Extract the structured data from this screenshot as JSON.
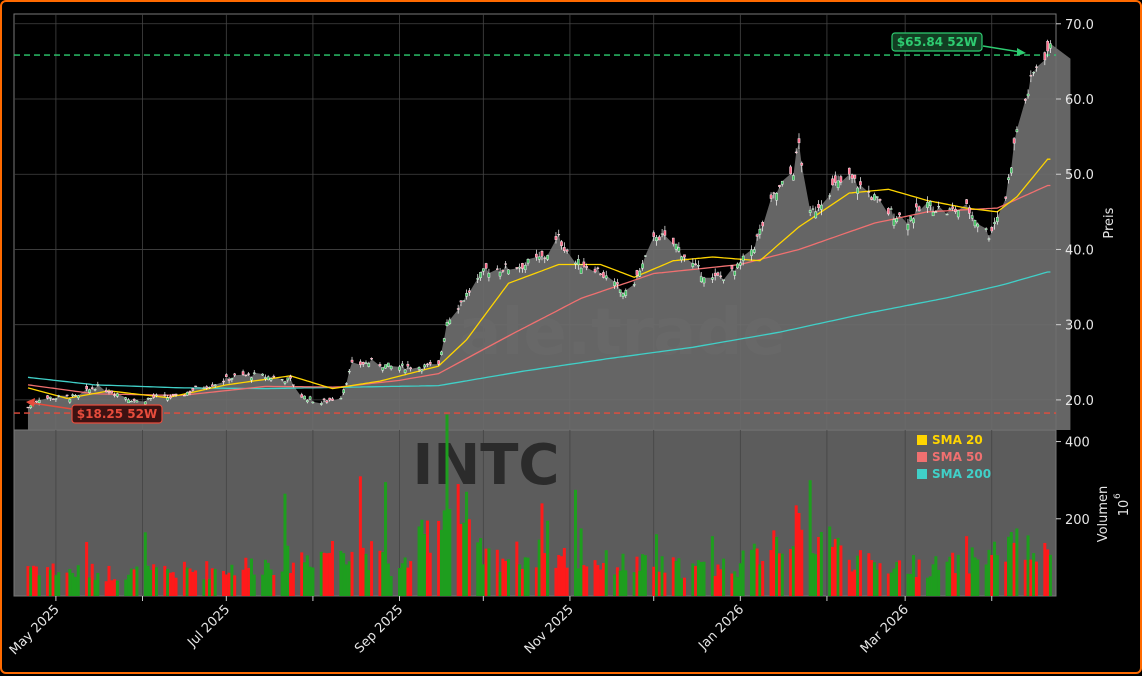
{
  "chart_data": {
    "type": "candlestick",
    "ticker": "INTC",
    "watermark": "ale.trade",
    "y_label": "Preis",
    "volume_label": "Volumen",
    "volume_unit": "10",
    "volume_unit_exp": "6",
    "x_ticks": [
      "May 2025",
      "Jul 2025",
      "Sep 2025",
      "Nov 2025",
      "Jan 2026",
      "Mar 2026"
    ],
    "y_ticks": [
      20.0,
      30.0,
      40.0,
      50.0,
      60.0,
      70.0
    ],
    "y_tick_labels": [
      "20.0",
      "30.0",
      "40.0",
      "50.0",
      "60.0",
      "70.0"
    ],
    "ylim": [
      16,
      71.3
    ],
    "volume_ticks": [
      200,
      400
    ],
    "volume_ylim": [
      0,
      430
    ],
    "high_52w": {
      "value": 65.84,
      "label": "$65.84 52W",
      "color": "#2ecc71"
    },
    "low_52w": {
      "value": 18.25,
      "label": "$18.25 52W",
      "color": "#e74c3c"
    },
    "colors": {
      "up": "#1e9e1e",
      "down": "#ff1a1a",
      "area": "#6e6e6e",
      "grid": "#444444",
      "sma20": "#ffd500",
      "sma50": "#f07070",
      "sma200": "#40d0c8"
    },
    "legend": [
      {
        "label": "SMA 20",
        "color": "#ffd500"
      },
      {
        "label": "SMA 50",
        "color": "#f07070"
      },
      {
        "label": "SMA 200",
        "color": "#40d0c8"
      }
    ],
    "close_knots": [
      [
        "2025-04-21",
        19.0
      ],
      [
        "2025-04-25",
        20.2
      ],
      [
        "2025-05-01",
        20.3
      ],
      [
        "2025-05-09",
        20.4
      ],
      [
        "2025-05-15",
        21.8
      ],
      [
        "2025-05-22",
        21.0
      ],
      [
        "2025-05-30",
        19.8
      ],
      [
        "2025-06-06",
        20.4
      ],
      [
        "2025-06-13",
        20.3
      ],
      [
        "2025-06-20",
        21.5
      ],
      [
        "2025-06-27",
        22.2
      ],
      [
        "2025-07-03",
        23.0
      ],
      [
        "2025-07-10",
        23.3
      ],
      [
        "2025-07-17",
        23.0
      ],
      [
        "2025-07-24",
        22.6
      ],
      [
        "2025-07-28",
        20.5
      ],
      [
        "2025-08-04",
        19.6
      ],
      [
        "2025-08-11",
        20.5
      ],
      [
        "2025-08-15",
        24.6
      ],
      [
        "2025-08-22",
        25.0
      ],
      [
        "2025-08-29",
        24.4
      ],
      [
        "2025-09-05",
        24.4
      ],
      [
        "2025-09-15",
        24.5
      ],
      [
        "2025-09-18",
        30.5
      ],
      [
        "2025-09-25",
        34.0
      ],
      [
        "2025-10-02",
        37.3
      ],
      [
        "2025-10-09",
        37.5
      ],
      [
        "2025-10-16",
        38.0
      ],
      [
        "2025-10-23",
        39.0
      ],
      [
        "2025-10-28",
        41.5
      ],
      [
        "2025-11-03",
        38.2
      ],
      [
        "2025-11-10",
        37.6
      ],
      [
        "2025-11-17",
        35.2
      ],
      [
        "2025-11-21",
        34.0
      ],
      [
        "2025-11-26",
        37.0
      ],
      [
        "2025-12-02",
        42.0
      ],
      [
        "2025-12-09",
        40.5
      ],
      [
        "2025-12-16",
        37.5
      ],
      [
        "2025-12-22",
        36.0
      ],
      [
        "2025-12-30",
        37.0
      ],
      [
        "2026-01-06",
        40.5
      ],
      [
        "2026-01-13",
        47.0
      ],
      [
        "2026-01-20",
        50.5
      ],
      [
        "2026-01-22",
        54.0
      ],
      [
        "2026-01-26",
        44.5
      ],
      [
        "2026-02-02",
        48.0
      ],
      [
        "2026-02-09",
        49.5
      ],
      [
        "2026-02-16",
        47.5
      ],
      [
        "2026-02-23",
        45.0
      ],
      [
        "2026-03-02",
        44.0
      ],
      [
        "2026-03-09",
        46.0
      ],
      [
        "2026-03-16",
        45.0
      ],
      [
        "2026-03-23",
        45.5
      ],
      [
        "2026-03-31",
        42.0
      ],
      [
        "2026-04-06",
        47.0
      ],
      [
        "2026-04-10",
        56.0
      ],
      [
        "2026-04-14",
        61.0
      ],
      [
        "2026-04-17",
        64.5
      ],
      [
        "2026-04-21",
        66.5
      ]
    ],
    "sma20_knots": [
      [
        "2025-04-21",
        21.6
      ],
      [
        "2025-05-05",
        20.2
      ],
      [
        "2025-05-20",
        21.2
      ],
      [
        "2025-06-10",
        20.3
      ],
      [
        "2025-07-01",
        22.0
      ],
      [
        "2025-07-24",
        23.2
      ],
      [
        "2025-08-08",
        21.5
      ],
      [
        "2025-08-25",
        22.5
      ],
      [
        "2025-09-15",
        24.5
      ],
      [
        "2025-09-25",
        28.0
      ],
      [
        "2025-10-10",
        35.5
      ],
      [
        "2025-10-28",
        38.0
      ],
      [
        "2025-11-12",
        38.0
      ],
      [
        "2025-11-24",
        36.3
      ],
      [
        "2025-12-08",
        38.5
      ],
      [
        "2025-12-22",
        39.0
      ],
      [
        "2026-01-08",
        38.5
      ],
      [
        "2026-01-22",
        43.0
      ],
      [
        "2026-02-09",
        47.5
      ],
      [
        "2026-02-23",
        48.0
      ],
      [
        "2026-03-09",
        46.5
      ],
      [
        "2026-03-23",
        45.5
      ],
      [
        "2026-04-03",
        45.0
      ],
      [
        "2026-04-10",
        47.0
      ],
      [
        "2026-04-21",
        52.0
      ]
    ],
    "sma50_knots": [
      [
        "2025-04-21",
        22.0
      ],
      [
        "2025-05-15",
        20.8
      ],
      [
        "2025-06-15",
        20.6
      ],
      [
        "2025-07-15",
        21.8
      ],
      [
        "2025-08-10",
        21.7
      ],
      [
        "2025-09-01",
        22.6
      ],
      [
        "2025-09-15",
        23.5
      ],
      [
        "2025-10-10",
        28.5
      ],
      [
        "2025-11-05",
        33.5
      ],
      [
        "2025-12-01",
        36.8
      ],
      [
        "2026-01-01",
        38.0
      ],
      [
        "2026-01-22",
        40.0
      ],
      [
        "2026-02-18",
        43.5
      ],
      [
        "2026-03-09",
        45.0
      ],
      [
        "2026-04-03",
        45.5
      ],
      [
        "2026-04-21",
        48.5
      ]
    ],
    "sma200_knots": [
      [
        "2025-04-21",
        23.0
      ],
      [
        "2025-05-15",
        22.0
      ],
      [
        "2025-06-15",
        21.6
      ],
      [
        "2025-07-15",
        21.5
      ],
      [
        "2025-08-15",
        21.7
      ],
      [
        "2025-09-15",
        21.9
      ],
      [
        "2025-10-15",
        23.8
      ],
      [
        "2025-11-15",
        25.5
      ],
      [
        "2025-12-15",
        27.0
      ],
      [
        "2026-01-15",
        29.0
      ],
      [
        "2026-02-15",
        31.5
      ],
      [
        "2026-03-15",
        33.5
      ],
      [
        "2026-04-05",
        35.3
      ],
      [
        "2026-04-21",
        37.0
      ]
    ],
    "volume_knots": [
      [
        "2025-04-21",
        90
      ],
      [
        "2025-05-05",
        70
      ],
      [
        "2025-06-01",
        65
      ],
      [
        "2025-07-01",
        80
      ],
      [
        "2025-07-28",
        110
      ],
      [
        "2025-08-15",
        150
      ],
      [
        "2025-09-01",
        70
      ],
      [
        "2025-09-18",
        260
      ],
      [
        "2025-10-01",
        110
      ],
      [
        "2025-10-20",
        120
      ],
      [
        "2025-11-15",
        95
      ],
      [
        "2025-12-15",
        80
      ],
      [
        "2026-01-01",
        90
      ],
      [
        "2026-01-22",
        200
      ],
      [
        "2026-02-15",
        90
      ],
      [
        "2026-03-15",
        85
      ],
      [
        "2026-04-08",
        140
      ],
      [
        "2026-04-21",
        110
      ]
    ],
    "volume_spikes": [
      [
        "2025-05-12",
        140
      ],
      [
        "2025-06-02",
        165
      ],
      [
        "2025-07-22",
        265
      ],
      [
        "2025-08-18",
        310
      ],
      [
        "2025-08-27",
        295
      ],
      [
        "2025-09-18",
        470
      ],
      [
        "2025-09-22",
        290
      ],
      [
        "2025-09-25",
        270
      ],
      [
        "2025-10-22",
        240
      ],
      [
        "2025-10-24",
        195
      ],
      [
        "2025-11-03",
        275
      ],
      [
        "2025-11-05",
        175
      ],
      [
        "2025-12-02",
        160
      ],
      [
        "2025-12-22",
        155
      ],
      [
        "2026-01-13",
        170
      ],
      [
        "2026-01-22",
        215
      ],
      [
        "2026-01-26",
        300
      ],
      [
        "2026-02-02",
        180
      ],
      [
        "2026-03-23",
        155
      ],
      [
        "2026-04-10",
        175
      ]
    ]
  }
}
